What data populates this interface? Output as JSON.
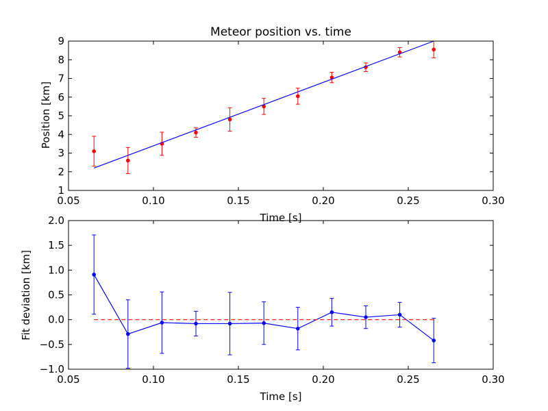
{
  "chart_data": [
    {
      "type": "scatter",
      "title": "Meteor position vs. time",
      "xlabel": "Time [s]",
      "ylabel": "Position [km]",
      "xlim": [
        0.05,
        0.3
      ],
      "ylim": [
        1,
        9
      ],
      "x_ticks": [
        "0.05",
        "0.10",
        "0.15",
        "0.20",
        "0.25",
        "0.30"
      ],
      "y_ticks": [
        "1",
        "2",
        "3",
        "4",
        "5",
        "6",
        "7",
        "8",
        "9"
      ],
      "series": [
        {
          "kind": "errorbar",
          "color": "#ff0000",
          "x": [
            0.065,
            0.085,
            0.105,
            0.125,
            0.145,
            0.165,
            0.185,
            0.205,
            0.225,
            0.245,
            0.265
          ],
          "y": [
            3.1,
            2.6,
            3.5,
            4.1,
            4.8,
            5.5,
            6.05,
            7.05,
            7.6,
            8.4,
            8.55
          ],
          "err": [
            0.8,
            0.7,
            0.62,
            0.25,
            0.63,
            0.43,
            0.43,
            0.28,
            0.23,
            0.25,
            0.45
          ]
        },
        {
          "kind": "line",
          "color": "#0000ff",
          "x": [
            0.065,
            0.265
          ],
          "y": [
            2.2,
            9.0
          ]
        }
      ]
    },
    {
      "type": "line",
      "title": "",
      "xlabel": "Time [s]",
      "ylabel": "Fit deviation [km]",
      "xlim": [
        0.05,
        0.3
      ],
      "ylim": [
        -1.0,
        2.0
      ],
      "x_ticks": [
        "0.05",
        "0.10",
        "0.15",
        "0.20",
        "0.25",
        "0.30"
      ],
      "y_ticks": [
        "−1.0",
        "−0.5",
        "0.0",
        "0.5",
        "1.0",
        "1.5",
        "2.0"
      ],
      "series": [
        {
          "kind": "errorbar-line",
          "color": "#0000ff",
          "x": [
            0.065,
            0.085,
            0.105,
            0.125,
            0.145,
            0.165,
            0.185,
            0.205,
            0.225,
            0.245,
            0.265
          ],
          "y": [
            0.91,
            -0.29,
            -0.06,
            -0.08,
            -0.08,
            -0.07,
            -0.18,
            0.15,
            0.05,
            0.1,
            -0.42
          ],
          "err": [
            0.8,
            0.69,
            0.62,
            0.25,
            0.63,
            0.43,
            0.43,
            0.28,
            0.23,
            0.25,
            0.45
          ]
        },
        {
          "kind": "dashed-line",
          "color": "#ff0000",
          "x": [
            0.065,
            0.265
          ],
          "y": [
            0.0,
            0.0
          ]
        }
      ]
    }
  ]
}
